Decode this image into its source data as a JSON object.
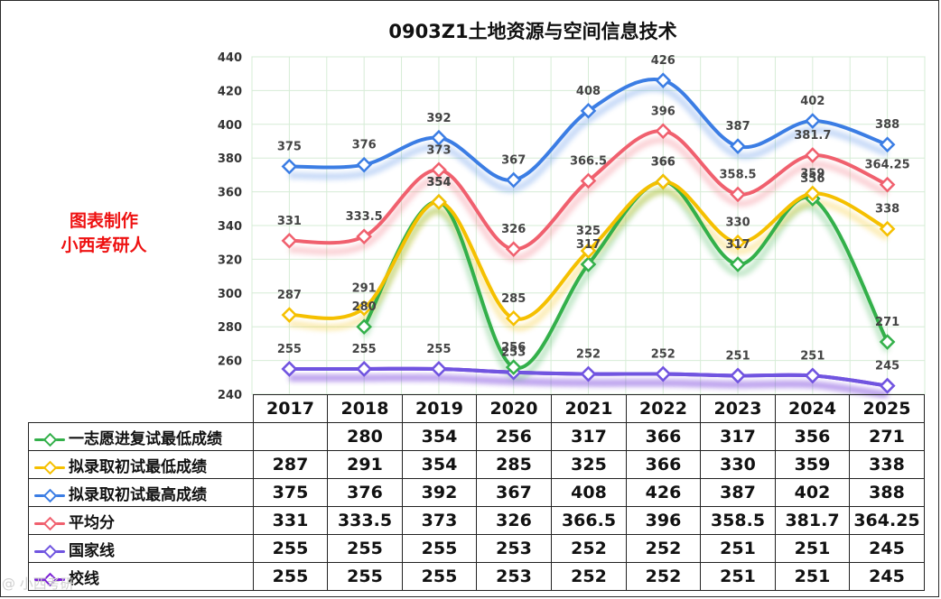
{
  "watermark_text": "@ 小西考研",
  "credit": {
    "line1": "图表制作",
    "line2": "小西考研人"
  },
  "chart_data": {
    "type": "line",
    "title": "0903Z1土地资源与空间信息技术",
    "categories": [
      "2017",
      "2018",
      "2019",
      "2020",
      "2021",
      "2022",
      "2023",
      "2024",
      "2025"
    ],
    "ylim": [
      240,
      440
    ],
    "yticks": [
      240,
      260,
      280,
      300,
      320,
      340,
      360,
      380,
      400,
      420,
      440
    ],
    "grid": true,
    "series": [
      {
        "name": "一志愿进复试最低成绩",
        "color": "#33b04a",
        "values": [
          null,
          280,
          354,
          256,
          317,
          366,
          317,
          356,
          271
        ]
      },
      {
        "name": "拟录取初试最低成绩",
        "color": "#f5c000",
        "values": [
          287,
          291,
          354,
          285,
          325,
          366,
          330,
          359,
          338
        ]
      },
      {
        "name": "拟录取初试最高成绩",
        "color": "#3b7de4",
        "values": [
          375,
          376,
          392,
          367,
          408,
          426,
          387,
          402,
          388
        ]
      },
      {
        "name": "平均分",
        "color": "#f0606e",
        "values": [
          331,
          333.5,
          373,
          326,
          366.5,
          396,
          358.5,
          381.7,
          364.25
        ]
      },
      {
        "name": "国家线",
        "color": "#7055e0",
        "values": [
          255,
          255,
          255,
          253,
          252,
          252,
          251,
          251,
          245
        ]
      },
      {
        "name": "校线",
        "color": "#7a1fd6",
        "values": [
          255,
          255,
          255,
          253,
          252,
          252,
          251,
          251,
          245
        ]
      }
    ],
    "label_series": [
      "拟录取初试最高成绩",
      "平均分",
      "拟录取初试最低成绩",
      "一志愿进复试最低成绩",
      "国家线"
    ]
  }
}
